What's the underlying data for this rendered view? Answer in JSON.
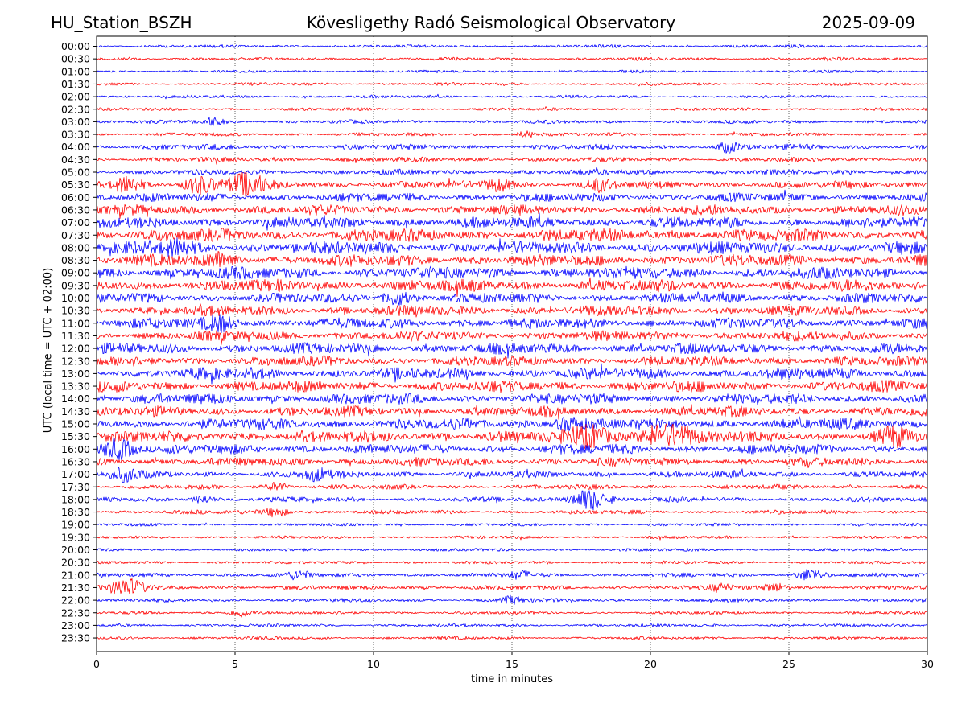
{
  "header": {
    "station": "HU_Station_BSZH",
    "title": "Kövesligethy Radó Seismological Observatory",
    "date": "2025-09-09"
  },
  "chart_data": {
    "type": "line",
    "xlabel": "time in minutes",
    "ylabel": "UTC (local time = UTC + 02:00)",
    "xlim": [
      0,
      30
    ],
    "x_ticks": [
      0,
      5,
      10,
      15,
      20,
      25,
      30
    ],
    "grid": "vertical dotted lines at each x tick",
    "series_colors": [
      "#0000ff",
      "#ff0000"
    ],
    "rows": [
      {
        "label": "00:00",
        "color": "#0000ff",
        "level": 0.15
      },
      {
        "label": "00:30",
        "color": "#ff0000",
        "level": 0.15
      },
      {
        "label": "01:00",
        "color": "#0000ff",
        "level": 0.12
      },
      {
        "label": "01:30",
        "color": "#ff0000",
        "level": 0.15
      },
      {
        "label": "02:00",
        "color": "#0000ff",
        "level": 0.15
      },
      {
        "label": "02:30",
        "color": "#ff0000",
        "level": 0.15
      },
      {
        "label": "03:00",
        "color": "#0000ff",
        "level": 0.2
      },
      {
        "label": "03:30",
        "color": "#ff0000",
        "level": 0.2
      },
      {
        "label": "04:00",
        "color": "#0000ff",
        "level": 0.35
      },
      {
        "label": "04:30",
        "color": "#ff0000",
        "level": 0.3
      },
      {
        "label": "05:00",
        "color": "#0000ff",
        "level": 0.35
      },
      {
        "label": "05:30",
        "color": "#ff0000",
        "level": 0.5
      },
      {
        "label": "06:00",
        "color": "#0000ff",
        "level": 0.6
      },
      {
        "label": "06:30",
        "color": "#ff0000",
        "level": 0.7
      },
      {
        "label": "07:00",
        "color": "#0000ff",
        "level": 0.8
      },
      {
        "label": "07:30",
        "color": "#ff0000",
        "level": 0.9
      },
      {
        "label": "08:00",
        "color": "#0000ff",
        "level": 0.9
      },
      {
        "label": "08:30",
        "color": "#ff0000",
        "level": 0.85
      },
      {
        "label": "09:00",
        "color": "#0000ff",
        "level": 0.85
      },
      {
        "label": "09:30",
        "color": "#ff0000",
        "level": 0.85
      },
      {
        "label": "10:00",
        "color": "#0000ff",
        "level": 0.7
      },
      {
        "label": "10:30",
        "color": "#ff0000",
        "level": 0.7
      },
      {
        "label": "11:00",
        "color": "#0000ff",
        "level": 0.75
      },
      {
        "label": "11:30",
        "color": "#ff0000",
        "level": 0.7
      },
      {
        "label": "12:00",
        "color": "#0000ff",
        "level": 0.75
      },
      {
        "label": "12:30",
        "color": "#ff0000",
        "level": 0.7
      },
      {
        "label": "13:00",
        "color": "#0000ff",
        "level": 0.8
      },
      {
        "label": "13:30",
        "color": "#ff0000",
        "level": 0.8
      },
      {
        "label": "14:00",
        "color": "#0000ff",
        "level": 0.75
      },
      {
        "label": "14:30",
        "color": "#ff0000",
        "level": 0.7
      },
      {
        "label": "15:00",
        "color": "#0000ff",
        "level": 0.8
      },
      {
        "label": "15:30",
        "color": "#ff0000",
        "level": 0.8
      },
      {
        "label": "16:00",
        "color": "#0000ff",
        "level": 0.7
      },
      {
        "label": "16:30",
        "color": "#ff0000",
        "level": 0.6
      },
      {
        "label": "17:00",
        "color": "#0000ff",
        "level": 0.45
      },
      {
        "label": "17:30",
        "color": "#ff0000",
        "level": 0.3
      },
      {
        "label": "18:00",
        "color": "#0000ff",
        "level": 0.3
      },
      {
        "label": "18:30",
        "color": "#ff0000",
        "level": 0.25
      },
      {
        "label": "19:00",
        "color": "#0000ff",
        "level": 0.15
      },
      {
        "label": "19:30",
        "color": "#ff0000",
        "level": 0.15
      },
      {
        "label": "20:00",
        "color": "#0000ff",
        "level": 0.15
      },
      {
        "label": "20:30",
        "color": "#ff0000",
        "level": 0.15
      },
      {
        "label": "21:00",
        "color": "#0000ff",
        "level": 0.25
      },
      {
        "label": "21:30",
        "color": "#ff0000",
        "level": 0.25
      },
      {
        "label": "22:00",
        "color": "#0000ff",
        "level": 0.2
      },
      {
        "label": "22:30",
        "color": "#ff0000",
        "level": 0.15
      },
      {
        "label": "23:00",
        "color": "#0000ff",
        "level": 0.15
      },
      {
        "label": "23:30",
        "color": "#ff0000",
        "level": 0.15
      }
    ],
    "events": [
      {
        "row": "03:00",
        "minute": 4.2,
        "strength": 0.5
      },
      {
        "row": "03:30",
        "minute": 15.5,
        "strength": 0.4
      },
      {
        "row": "04:00",
        "minute": 22.8,
        "strength": 0.6
      },
      {
        "row": "05:30",
        "minute": 1.1,
        "strength": 1.0
      },
      {
        "row": "05:30",
        "minute": 3.7,
        "strength": 1.0
      },
      {
        "row": "05:30",
        "minute": 5.4,
        "strength": 1.4
      },
      {
        "row": "05:30",
        "minute": 14.5,
        "strength": 0.8
      },
      {
        "row": "05:30",
        "minute": 18.2,
        "strength": 0.7
      },
      {
        "row": "08:00",
        "minute": 2.9,
        "strength": 0.8
      },
      {
        "row": "08:30",
        "minute": 4.6,
        "strength": 0.8
      },
      {
        "row": "10:00",
        "minute": 10.8,
        "strength": 0.8
      },
      {
        "row": "11:00",
        "minute": 4.5,
        "strength": 0.9
      },
      {
        "row": "15:00",
        "minute": 17.0,
        "strength": 0.8
      },
      {
        "row": "15:30",
        "minute": 17.8,
        "strength": 1.5
      },
      {
        "row": "15:30",
        "minute": 20.6,
        "strength": 1.8
      },
      {
        "row": "15:30",
        "minute": 28.8,
        "strength": 1.0
      },
      {
        "row": "16:00",
        "minute": 0.8,
        "strength": 1.2
      },
      {
        "row": "17:00",
        "minute": 1.0,
        "strength": 0.8
      },
      {
        "row": "17:00",
        "minute": 7.9,
        "strength": 0.7
      },
      {
        "row": "17:30",
        "minute": 6.5,
        "strength": 0.5
      },
      {
        "row": "18:00",
        "minute": 17.8,
        "strength": 1.4
      },
      {
        "row": "18:00",
        "minute": 3.8,
        "strength": 0.5
      },
      {
        "row": "18:30",
        "minute": 6.5,
        "strength": 0.6
      },
      {
        "row": "21:00",
        "minute": 7.3,
        "strength": 0.5
      },
      {
        "row": "21:00",
        "minute": 15.3,
        "strength": 0.5
      },
      {
        "row": "21:00",
        "minute": 25.8,
        "strength": 0.8
      },
      {
        "row": "21:30",
        "minute": 1.1,
        "strength": 1.2
      },
      {
        "row": "21:30",
        "minute": 22.5,
        "strength": 0.5
      },
      {
        "row": "21:30",
        "minute": 24.5,
        "strength": 0.6
      },
      {
        "row": "22:00",
        "minute": 15.0,
        "strength": 0.5
      },
      {
        "row": "22:30",
        "minute": 5.2,
        "strength": 0.6
      }
    ]
  }
}
